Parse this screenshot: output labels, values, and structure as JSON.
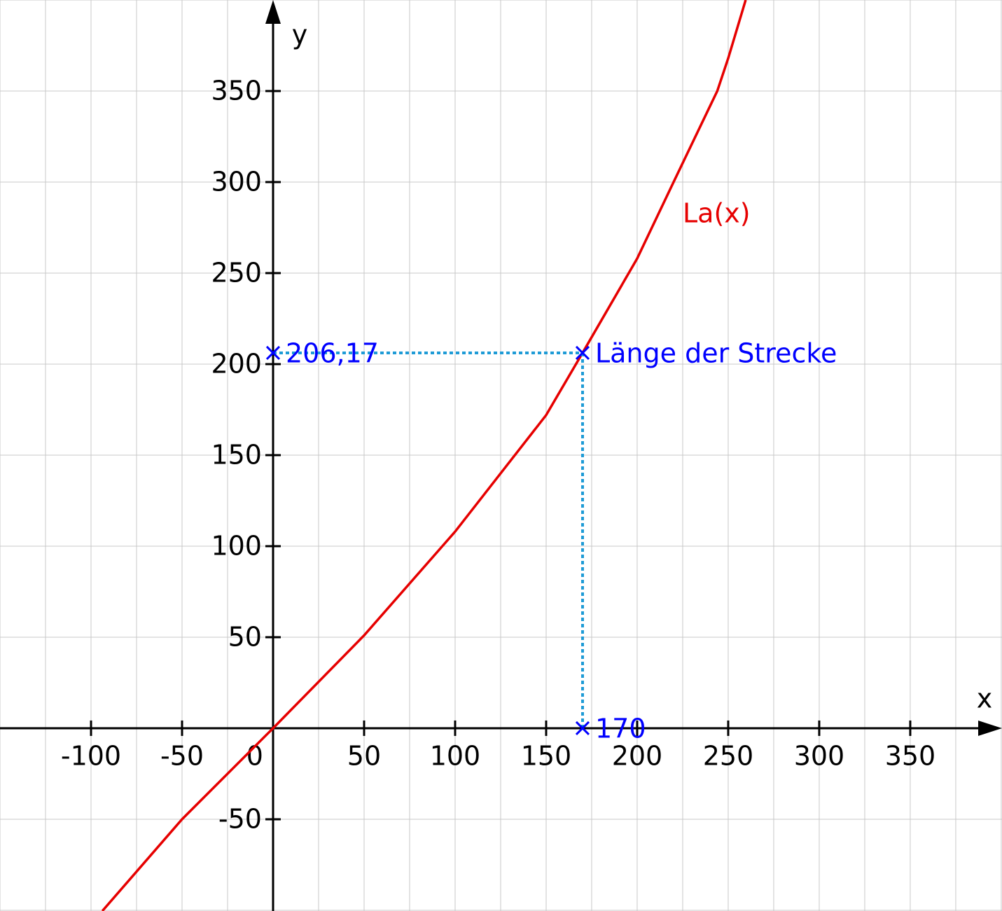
{
  "chart_data": {
    "type": "line",
    "xlabel": "x",
    "ylabel": "y",
    "xlim": [
      -150,
      400.4
    ],
    "ylim": [
      -100.4,
      400
    ],
    "xticks": [
      -100,
      -50,
      0,
      50,
      100,
      150,
      200,
      250,
      300,
      350
    ],
    "yticks": [
      -50,
      50,
      100,
      150,
      200,
      250,
      300,
      350
    ],
    "grid": true,
    "series": [
      {
        "name": "La(x)",
        "color": "#e60000",
        "x": [
          -93.8,
          -50,
          0,
          50,
          100,
          150,
          170,
          200,
          220,
          244,
          250,
          259.6
        ],
        "values": [
          -100.4,
          -50,
          0,
          51,
          108,
          172,
          206.17,
          258,
          300,
          350,
          368,
          400
        ]
      }
    ],
    "points": [
      {
        "x": 170,
        "y": 206.17,
        "label": "Länge der Strecke"
      },
      {
        "x": 0,
        "y": 206.17,
        "label": "206,17"
      },
      {
        "x": 170,
        "y": 0,
        "label": "170"
      }
    ],
    "point_color": "#0000ff",
    "guide_color": "#1e9bd6"
  }
}
